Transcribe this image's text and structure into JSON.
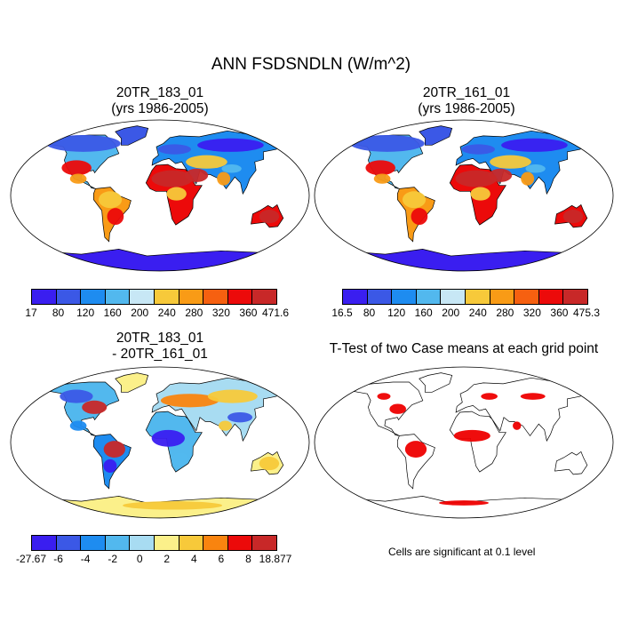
{
  "title": "ANN FSDSNDLN (W/m^2)",
  "panels": [
    {
      "title_line1": "20TR_183_01",
      "title_line2": "(yrs 1986-2005)",
      "type": "field",
      "colorbar": {
        "colors": [
          "#3a1ef0",
          "#3b58e6",
          "#1e8cf0",
          "#52b8ee",
          "#c7e7f5",
          "#f7c93a",
          "#f99b16",
          "#f66010",
          "#ec0a0a",
          "#c82828"
        ],
        "labels": [
          "17",
          "80",
          "120",
          "160",
          "200",
          "240",
          "280",
          "320",
          "360",
          "471.6"
        ]
      }
    },
    {
      "title_line1": "20TR_161_01",
      "title_line2": "(yrs 1986-2005)",
      "type": "field",
      "colorbar": {
        "colors": [
          "#3a1ef0",
          "#3b58e6",
          "#1e8cf0",
          "#52b8ee",
          "#c7e7f5",
          "#f7c93a",
          "#f99b16",
          "#f66010",
          "#ec0a0a",
          "#c82828"
        ],
        "labels": [
          "16.5",
          "80",
          "120",
          "160",
          "200",
          "240",
          "280",
          "320",
          "360",
          "475.3"
        ]
      }
    },
    {
      "title_line1": "20TR_183_01",
      "title_line2": "- 20TR_161_01",
      "type": "difference",
      "colorbar": {
        "colors": [
          "#3a1ef0",
          "#3b58e6",
          "#1e8cf0",
          "#52b8ee",
          "#a8dcf2",
          "#fbf08a",
          "#f7c93a",
          "#f9840f",
          "#ec0a0a",
          "#c82828"
        ],
        "labels": [
          "-27.67",
          "-6",
          "-4",
          "-2",
          "0",
          "2",
          "4",
          "6",
          "8",
          "18.877"
        ]
      }
    },
    {
      "title_line1": "T-Test of two Case means at each grid point",
      "type": "ttest",
      "note": "Cells are significant at 0.1 level"
    }
  ]
}
